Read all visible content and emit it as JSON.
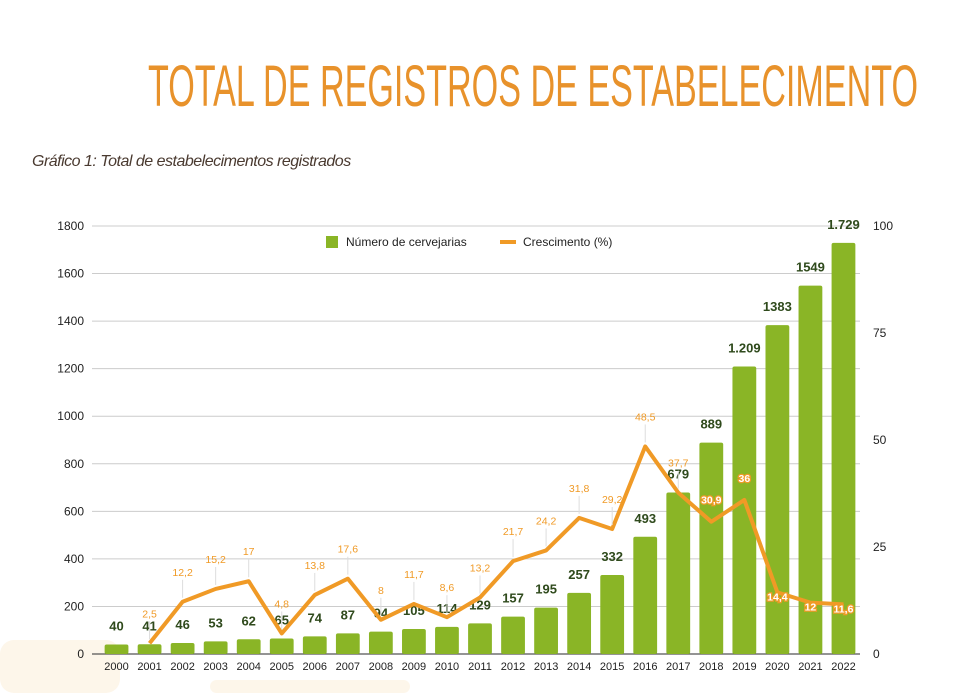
{
  "header": {
    "title": "TOTAL DE REGISTROS DE ESTABELECIMENTO",
    "subtitle": "Gráfico 1: Total de estabelecimentos registrados"
  },
  "chart_data": {
    "type": "bar+line",
    "categories": [
      "2000",
      "2001",
      "2002",
      "2003",
      "2004",
      "2005",
      "2006",
      "2007",
      "2008",
      "2009",
      "2010",
      "2011",
      "2012",
      "2013",
      "2014",
      "2015",
      "2016",
      "2017",
      "2018",
      "2019",
      "2020",
      "2021",
      "2022"
    ],
    "series": [
      {
        "name": "Número de cervejarias",
        "type": "bar",
        "axis": "left",
        "color": "#8AB526",
        "values": [
          40,
          41,
          46,
          53,
          62,
          65,
          74,
          87,
          94,
          105,
          114,
          129,
          157,
          195,
          257,
          332,
          493,
          679,
          889,
          1209,
          1383,
          1549,
          1729
        ],
        "labels": [
          "40",
          "41",
          "46",
          "53",
          "62",
          "65",
          "74",
          "87",
          "94",
          "105",
          "114",
          "129",
          "157",
          "195",
          "257",
          "332",
          "493",
          "679",
          "889",
          "1.209",
          "1383",
          "1549",
          "1.729"
        ]
      },
      {
        "name": "Crescimento (%)",
        "type": "line",
        "axis": "right",
        "color": "#F09A26",
        "values": [
          null,
          2.5,
          12.2,
          15.2,
          17,
          4.8,
          13.8,
          17.6,
          8,
          11.7,
          8.6,
          13.2,
          21.7,
          24.2,
          31.8,
          29.2,
          48.5,
          37.7,
          30.9,
          36,
          14.4,
          12,
          11.6
        ],
        "labels": [
          "",
          "2,5",
          "12,2",
          "15,2",
          "17",
          "4,8",
          "13,8",
          "17,6",
          "8",
          "11,7",
          "8,6",
          "13,2",
          "21,7",
          "24,2",
          "31,8",
          "29,2",
          "48,5",
          "37,7",
          "30,9",
          "36",
          "14,4",
          "12",
          "11,6"
        ]
      }
    ],
    "left_axis": {
      "ylim": [
        0,
        1800
      ],
      "ticks": [
        "0",
        "200",
        "400",
        "600",
        "800",
        "1000",
        "1200",
        "1400",
        "1600",
        "1800"
      ]
    },
    "right_axis": {
      "ylim": [
        0,
        100
      ],
      "ticks": [
        "0",
        "25",
        "50",
        "75",
        "100"
      ]
    },
    "grid": true,
    "legend": "top-center"
  }
}
